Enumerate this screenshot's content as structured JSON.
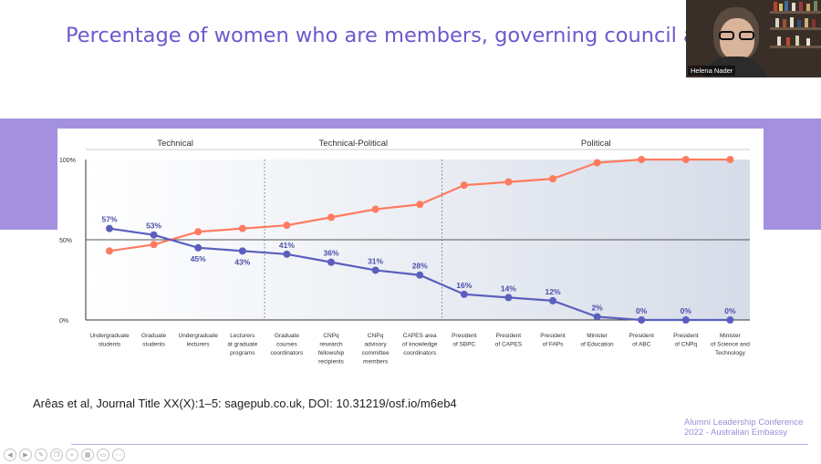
{
  "slide": {
    "title": "Percentage of women who are members, governing council and secretariat by country academy",
    "citation": "Arêas et al, Journal Title XX(X):1–5: sagepub.co.uk, DOI: 10.31219/osf.io/m6eb4",
    "footer": [
      "Alumni Leadership Conference",
      "2022 - Australian Embassy"
    ]
  },
  "video": {
    "participant_name": "Helena Nader"
  },
  "toolbar": {
    "icons": [
      "back-icon",
      "forward-icon",
      "pen-icon",
      "copy-icon",
      "zoom-icon",
      "grid-icon",
      "screen-icon",
      "more-icon"
    ]
  },
  "chart_data": {
    "type": "line",
    "sections": [
      "Technical",
      "Technical-Political",
      "Political"
    ],
    "categories": [
      [
        "Undergraduate",
        "students"
      ],
      [
        "Graduate",
        "students"
      ],
      [
        "Undergraduate",
        "lecturers"
      ],
      [
        "Lecturers",
        "at graduate",
        "programs"
      ],
      [
        "Graduate",
        "courses",
        "coordinators"
      ],
      [
        "CNPq",
        "research",
        "fellowship",
        "recipients"
      ],
      [
        "CNPq",
        "advisory",
        "committee",
        "members"
      ],
      [
        "CAPES area",
        "of knowledge",
        "coordinators"
      ],
      [
        "President",
        "of SBPC"
      ],
      [
        "President",
        "of CAPES"
      ],
      [
        "President",
        "of FAPs"
      ],
      [
        "Minister",
        "of Education"
      ],
      [
        "President",
        "of ABC"
      ],
      [
        "President",
        "of CNPq"
      ],
      [
        "Minister",
        "of Science and",
        "Technology"
      ]
    ],
    "yticks": [
      "100%",
      "50%",
      "0%"
    ],
    "ylim": [
      0,
      100
    ],
    "series": [
      {
        "color": "#ff7b5f",
        "values": [
          43,
          47,
          55,
          57,
          59,
          64,
          69,
          72,
          84,
          86,
          88,
          98,
          100,
          100,
          100
        ]
      },
      {
        "color": "#5a5fbe",
        "values": [
          57,
          53,
          45,
          43,
          41,
          36,
          31,
          28,
          16,
          14,
          12,
          2,
          0,
          0,
          0
        ],
        "labels": [
          "57%",
          "53%",
          "45%",
          "43%",
          "41%",
          "36%",
          "31%",
          "28%",
          "16%",
          "14%",
          "12%",
          "2%",
          "0%",
          "0%",
          "0%"
        ]
      }
    ]
  }
}
